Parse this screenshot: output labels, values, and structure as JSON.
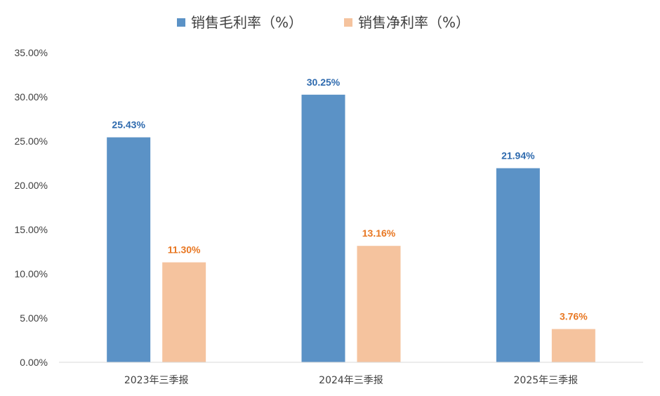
{
  "chart_data": {
    "type": "bar",
    "categories": [
      "2023年三季报",
      "2024年三季报",
      "2025年三季报"
    ],
    "series": [
      {
        "name": "销售毛利率（%）",
        "values": [
          25.43,
          30.25,
          21.94
        ],
        "labels": [
          "25.43%",
          "30.25%",
          "21.94%"
        ],
        "color": "#5B92C6",
        "label_color": "#2E6AAE"
      },
      {
        "name": "销售净利率（%）",
        "values": [
          11.3,
          13.16,
          3.76
        ],
        "labels": [
          "11.30%",
          "13.16%",
          "3.76%"
        ],
        "color": "#F5C39E",
        "label_color": "#E87722"
      }
    ],
    "y_ticks": [
      "0.00%",
      "5.00%",
      "10.00%",
      "15.00%",
      "20.00%",
      "25.00%",
      "30.00%",
      "35.00%"
    ],
    "ylim": [
      0,
      35
    ],
    "grid": false,
    "legend_position": "top-center"
  }
}
